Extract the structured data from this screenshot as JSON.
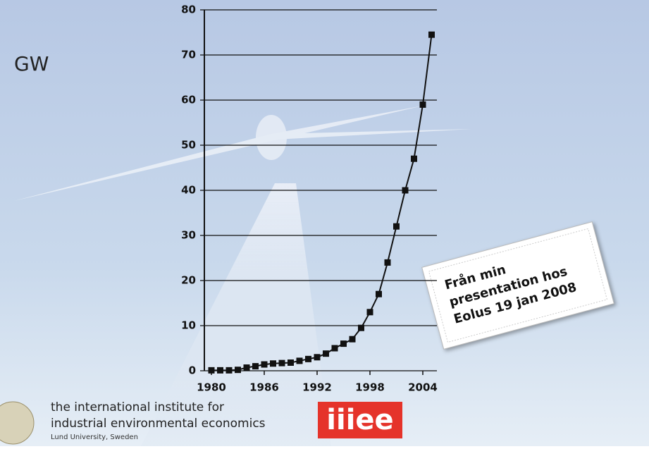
{
  "chart_data": {
    "type": "line",
    "y_label": "GW",
    "x": [
      1980,
      1981,
      1982,
      1983,
      1984,
      1985,
      1986,
      1987,
      1988,
      1989,
      1990,
      1991,
      1992,
      1993,
      1994,
      1995,
      1996,
      1997,
      1998,
      1999,
      2000,
      2001,
      2002,
      2003,
      2004,
      2005
    ],
    "values": [
      0.1,
      0.1,
      0.1,
      0.2,
      0.7,
      1.0,
      1.4,
      1.6,
      1.7,
      1.8,
      2.2,
      2.6,
      3.0,
      3.8,
      5.0,
      6.0,
      7.0,
      9.5,
      13.0,
      17.0,
      24.0,
      32.0,
      40.0,
      47.0,
      59.0,
      74.5
    ],
    "color": "#111111",
    "xlim": [
      1979.2,
      2005.6
    ],
    "xticks": [
      1980,
      1986,
      1992,
      1998,
      2004
    ],
    "ylim": [
      0,
      80
    ],
    "yticks": [
      0,
      10,
      20,
      30,
      40,
      50,
      60,
      70,
      80
    ],
    "grid": true,
    "annotation": [
      "Från min",
      "presentation hos",
      "Eolus 19 jan 2008"
    ]
  },
  "footer": {
    "lines": [
      "the international institute for",
      "industrial environmental economics"
    ],
    "university": "Lund University, Sweden",
    "logo": "iiiee"
  }
}
